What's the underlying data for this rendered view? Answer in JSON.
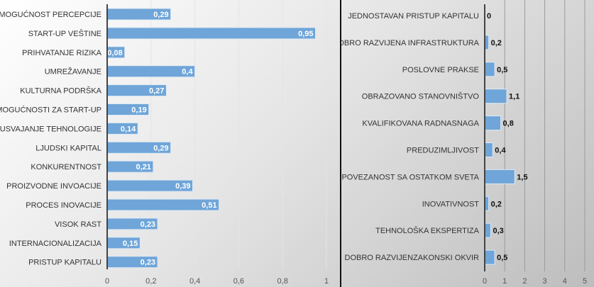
{
  "chart_data": [
    {
      "type": "bar",
      "orientation": "horizontal",
      "title": "",
      "categories": [
        "MOGUĆNOST PERCEPCIJE",
        "START-UP VEŠTINE",
        "PRIHVATANJE RIZIKA",
        "UMREŽAVANJE",
        "KULTURNA PODRŠKA",
        "MOGUĆNOSTI ZA START-UP",
        "USVAJANJE TEHNOLOGIJE",
        "LJUDSKI KAPITAL",
        "KONKURENTNOST",
        "PROIZVODNE INVOACIJE",
        "PROCES INOVACIJE",
        "VISOK RAST",
        "INTERNACIONALIZACIJA",
        "PRISTUP KAPITALU"
      ],
      "values": [
        0.29,
        0.95,
        0.08,
        0.4,
        0.27,
        0.19,
        0.14,
        0.29,
        0.21,
        0.39,
        0.51,
        0.23,
        0.15,
        0.23
      ],
      "data_labels": [
        "0,29",
        "0,95",
        "0,08",
        "0,4",
        "0,27",
        "0,19",
        "0,14",
        "0,29",
        "0,21",
        "0,39",
        "0,51",
        "0,23",
        "0,15",
        "0,23"
      ],
      "xlim": [
        0,
        1
      ],
      "xticks": [
        "0",
        "0,2",
        "0,4",
        "0,6",
        "0,8",
        "1"
      ],
      "xtick_values": [
        0,
        0.2,
        0.4,
        0.6,
        0.8,
        1
      ],
      "grid": true,
      "bar_color": "#6fa5d8"
    },
    {
      "type": "bar",
      "orientation": "horizontal",
      "title": "",
      "categories": [
        "JEDNOSTAVAN PRISTUP KAPITALU",
        "DOBRO RAZVIJENA INFRASTRUKTURA",
        "POSLOVNE PRAKSE",
        "OBRAZOVANO STANOVNIŠTVO",
        "KVALIFIKOVANA RADNASNAGA",
        "PREDUZIMLJIVOST",
        "POVEZANOST SA OSTATKOM SVETA",
        "INOVATIVNOST",
        "TEHNOLOŠKA EKSPERTIZA",
        "DOBRO RAZVIJENZAKONSKI OKVIR"
      ],
      "values": [
        0,
        0.2,
        0.5,
        1.1,
        0.8,
        0.4,
        1.5,
        0.2,
        0.3,
        0.5
      ],
      "data_labels": [
        "0",
        "0,2",
        "0,5",
        "1,1",
        "0,8",
        "0,4",
        "1,5",
        "0,2",
        "0,3",
        "0,5"
      ],
      "xlim": [
        0,
        5
      ],
      "xticks": [
        "0",
        "1",
        "2",
        "3",
        "4",
        "5"
      ],
      "xtick_values": [
        0,
        1,
        2,
        3,
        4,
        5
      ],
      "grid": true,
      "bar_color": "#6fa5d8"
    }
  ]
}
